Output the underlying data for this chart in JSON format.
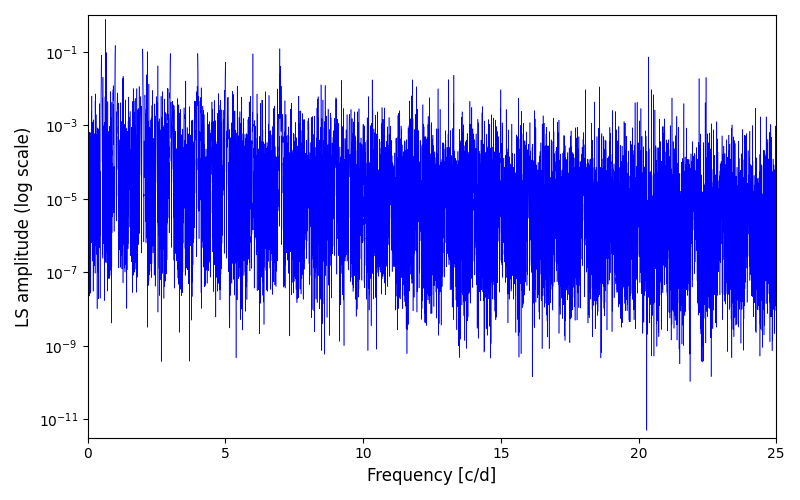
{
  "xlabel": "Frequency [c/d]",
  "ylabel": "LS amplitude (log scale)",
  "line_color": "#0000ff",
  "xlim": [
    0,
    25
  ],
  "ylim_log": [
    -11.5,
    0
  ],
  "yticks": [
    1e-11,
    1e-09,
    1e-07,
    1e-05,
    0.001,
    0.1
  ],
  "xticks": [
    0,
    5,
    10,
    15,
    20,
    25
  ],
  "figsize": [
    8.0,
    5.0
  ],
  "dpi": 100,
  "seed": 12345,
  "n_points": 15000,
  "freq_max": 25.0,
  "background_color": "#ffffff"
}
